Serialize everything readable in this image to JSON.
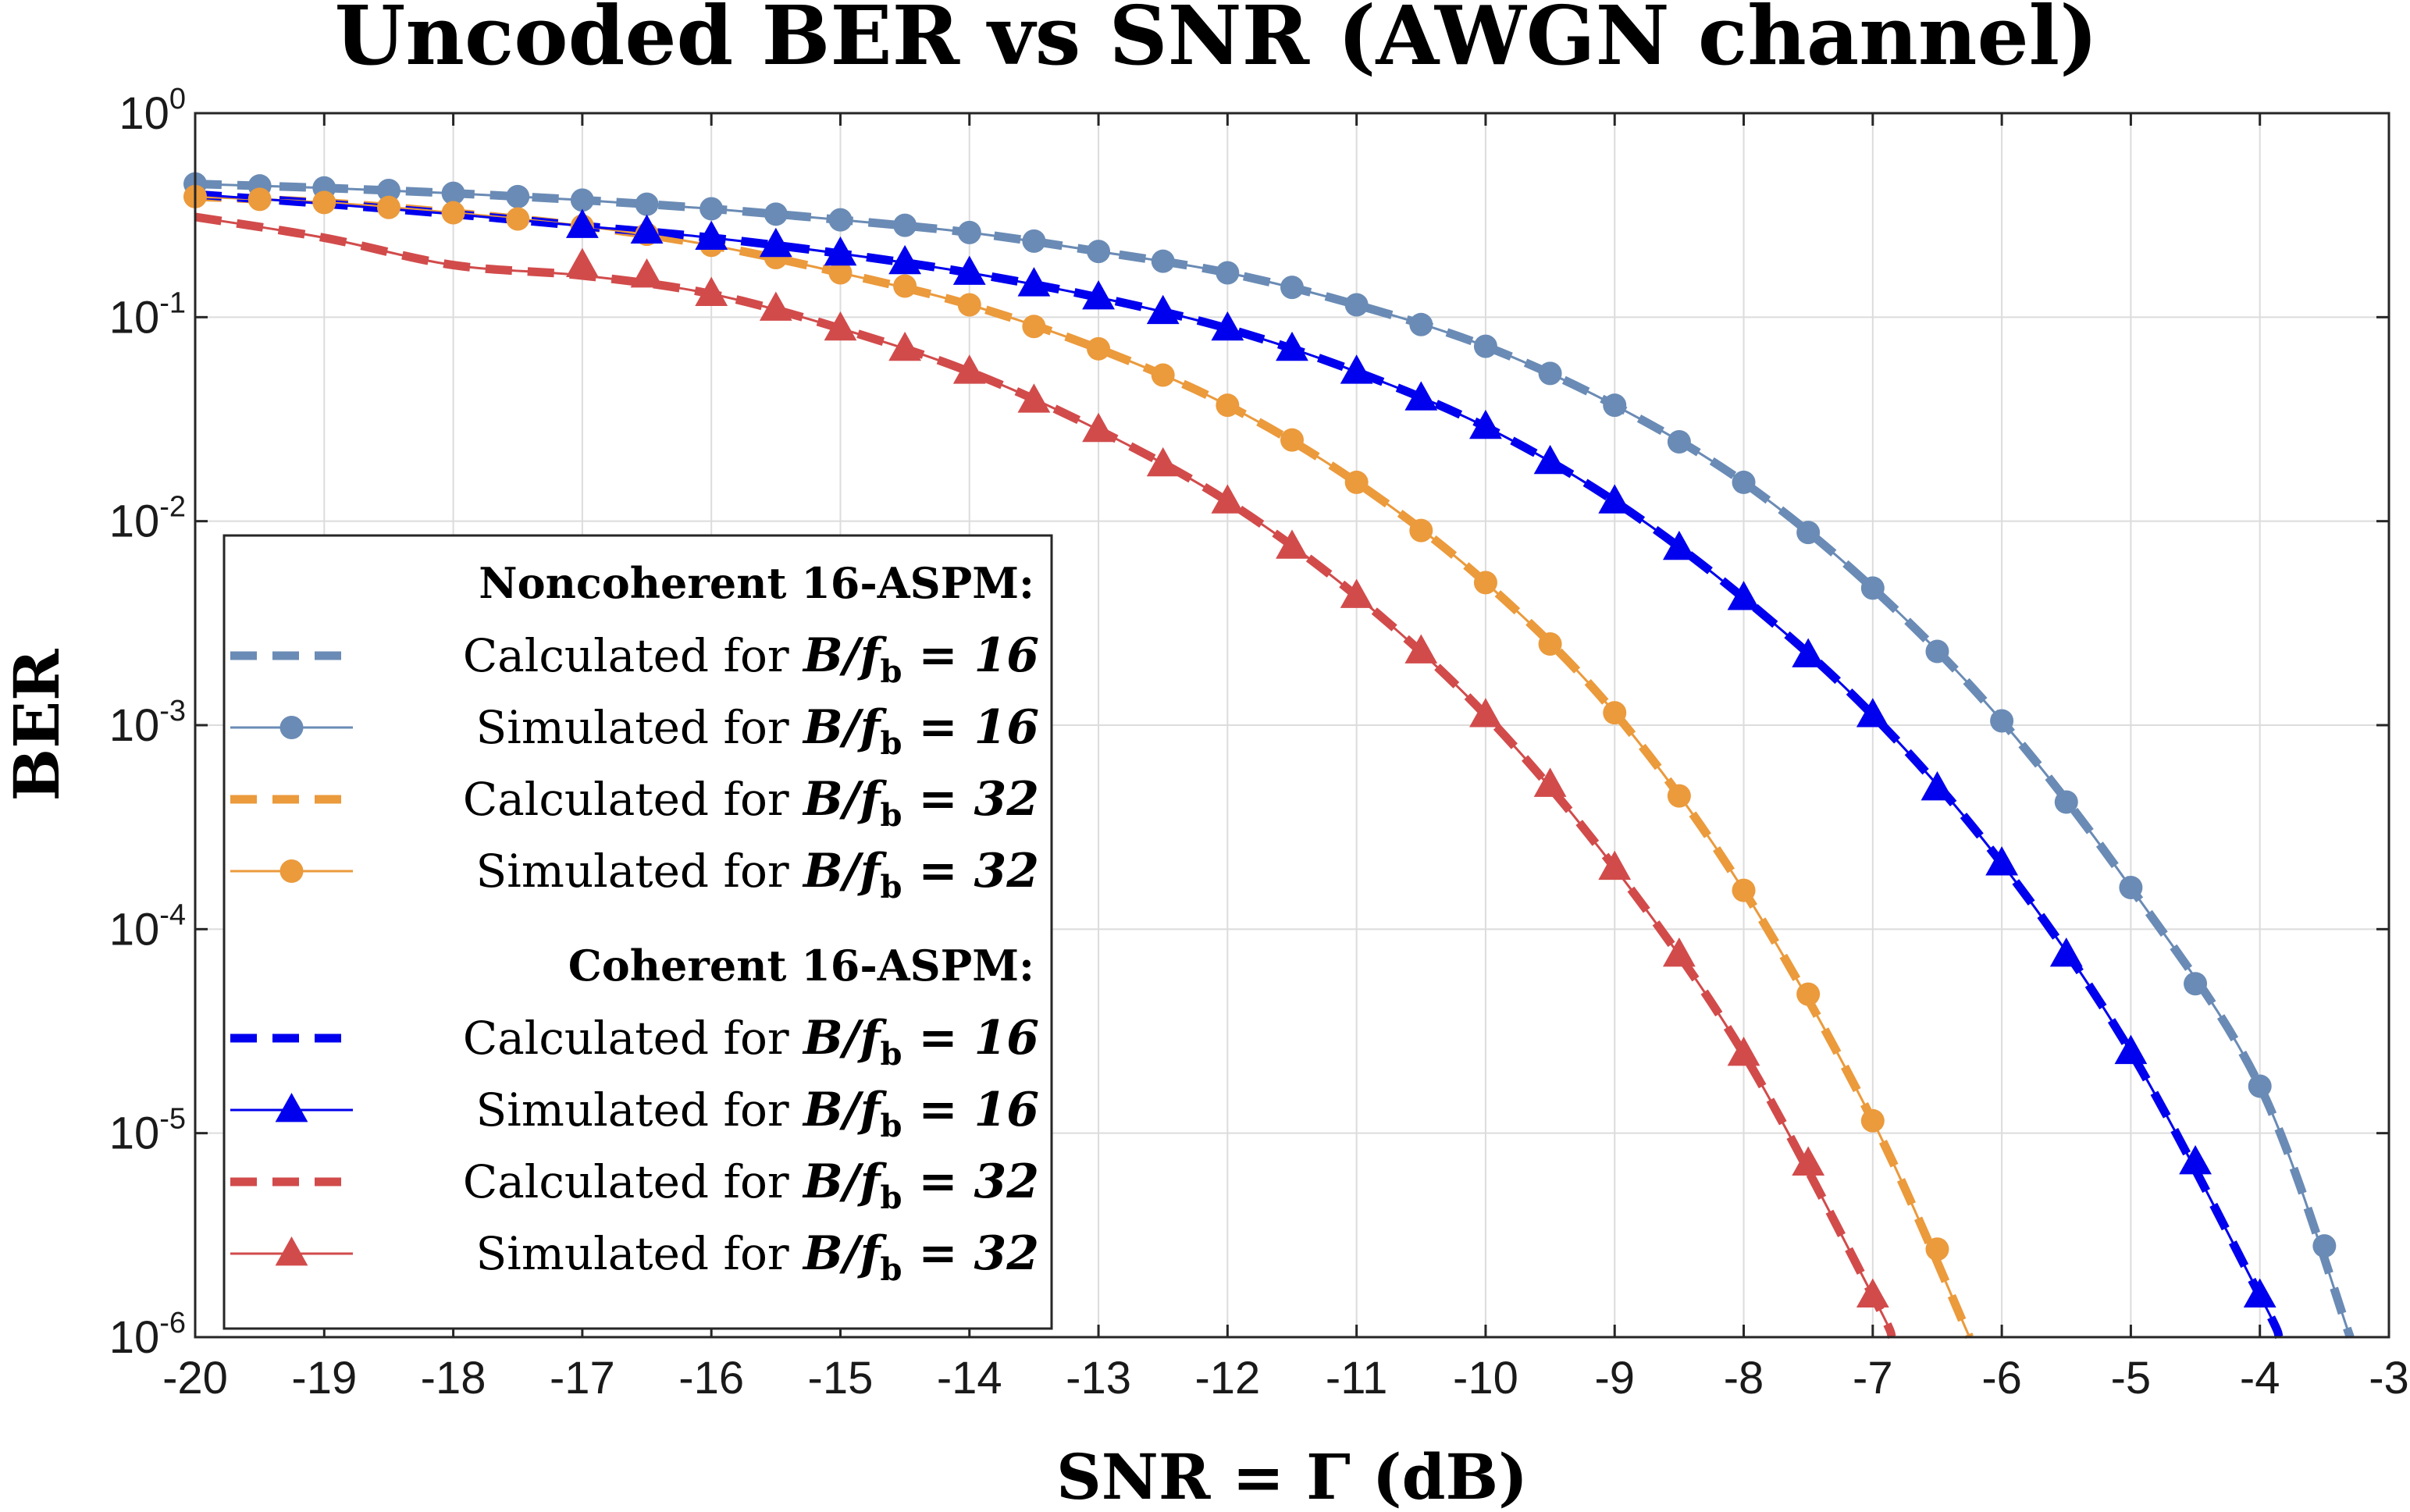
{
  "chart_data": {
    "type": "line",
    "title": "Uncoded BER vs SNR (AWGN channel)",
    "xlabel": "SNR = Γ (dB)",
    "ylabel": "BER",
    "xlim": [
      -20,
      -3
    ],
    "ylim": [
      1e-06,
      1
    ],
    "yscale": "log",
    "grid": true,
    "xticks": [
      -20,
      -19,
      -18,
      -17,
      -16,
      -15,
      -14,
      -13,
      -12,
      -11,
      -10,
      -9,
      -8,
      -7,
      -6,
      -5,
      -4,
      -3
    ],
    "xtick_labels": [
      "-20",
      "-19",
      "-18",
      "-17",
      "-16",
      "-15",
      "-14",
      "-13",
      "-12",
      "-11",
      "-10",
      "-9",
      "-8",
      "-7",
      "-6",
      "-5",
      "-4",
      "-3"
    ],
    "yticks": [
      {
        "value": 1,
        "base": "10",
        "exp": "0"
      },
      {
        "value": 0.1,
        "base": "10",
        "exp": "-1"
      },
      {
        "value": 0.01,
        "base": "10",
        "exp": "-2"
      },
      {
        "value": 0.001,
        "base": "10",
        "exp": "-3"
      },
      {
        "value": 0.0001,
        "base": "10",
        "exp": "-4"
      },
      {
        "value": 1e-05,
        "base": "10",
        "exp": "-5"
      },
      {
        "value": 1e-06,
        "base": "10",
        "exp": "-6"
      }
    ],
    "curves": [
      {
        "key": "nc16",
        "color": "#6a8bb5",
        "x": [
          -20,
          -19,
          -18,
          -17,
          -16,
          -15,
          -14,
          -13,
          -12,
          -11,
          -10,
          -9,
          -8,
          -7,
          -6,
          -5,
          -4,
          -3.3
        ],
        "y": [
          0.45,
          0.43,
          0.405,
          0.375,
          0.34,
          0.3,
          0.26,
          0.21,
          0.165,
          0.115,
          0.072,
          0.037,
          0.0155,
          0.0047,
          0.00105,
          0.00016,
          1.7e-05,
          1e-06
        ]
      },
      {
        "key": "nc32",
        "color": "#eb9a3c",
        "x": [
          -20,
          -19,
          -18,
          -17,
          -16,
          -15,
          -14,
          -13,
          -12,
          -11,
          -10,
          -9,
          -8,
          -7,
          -6.25
        ],
        "y": [
          0.39,
          0.365,
          0.325,
          0.28,
          0.225,
          0.165,
          0.115,
          0.07,
          0.037,
          0.0155,
          0.005,
          0.00115,
          0.000155,
          1.15e-05,
          1e-06
        ]
      },
      {
        "key": "c16",
        "color": "#0000ee",
        "x": [
          -20,
          -19,
          -18,
          -17,
          -16,
          -15,
          -14,
          -13,
          -12,
          -11,
          -10,
          -9,
          -8,
          -7,
          -6,
          -5,
          -4,
          -3.85
        ],
        "y": [
          0.4,
          0.36,
          0.32,
          0.28,
          0.245,
          0.205,
          0.165,
          0.125,
          0.088,
          0.054,
          0.029,
          0.0125,
          0.0042,
          0.00112,
          0.00021,
          2.5e-05,
          1.6e-06,
          1e-06
        ]
      },
      {
        "key": "c32",
        "color": "#d24b4b",
        "x": [
          -20,
          -19,
          -18,
          -17,
          -16,
          -15,
          -14,
          -13,
          -12,
          -11,
          -10,
          -9,
          -8,
          -7,
          -6.85
        ],
        "y": [
          0.31,
          0.245,
          0.18,
          0.16,
          0.13,
          0.088,
          0.054,
          0.028,
          0.0125,
          0.0043,
          0.00112,
          0.0002,
          2.45e-05,
          1.6e-06,
          1e-06
        ]
      }
    ],
    "series": [
      {
        "name": "Noncoherent 16-ASPM: Calculated for B/f_b = 16",
        "style": "dashed",
        "color": "#6a8bb5",
        "curve": "nc16"
      },
      {
        "name": "Noncoherent 16-ASPM: Simulated for B/f_b = 16",
        "style": "solid-circle",
        "color": "#6a8bb5",
        "curve": "nc16",
        "x": [
          -20,
          -19.5,
          -19,
          -18.5,
          -18,
          -17.5,
          -17,
          -16.5,
          -16,
          -15.5,
          -15,
          -14.5,
          -14,
          -13.5,
          -13,
          -12.5,
          -12,
          -11.5,
          -11,
          -10.5,
          -10,
          -9.5,
          -9,
          -8.5,
          -8,
          -7.5,
          -7,
          -6.5,
          -6,
          -5.5,
          -5,
          -4.5,
          -4,
          -3.5
        ],
        "y": [
          0.45,
          0.44,
          0.43,
          0.418,
          0.405,
          0.39,
          0.375,
          0.358,
          0.34,
          0.32,
          0.3,
          0.282,
          0.26,
          0.236,
          0.21,
          0.188,
          0.165,
          0.14,
          0.115,
          0.092,
          0.072,
          0.053,
          0.037,
          0.0245,
          0.0155,
          0.0088,
          0.0047,
          0.0023,
          0.00105,
          0.00042,
          0.00016,
          5.4e-05,
          1.7e-05,
          2.8e-06
        ]
      },
      {
        "name": "Noncoherent 16-ASPM: Calculated for B/f_b = 32",
        "style": "dashed",
        "color": "#eb9a3c",
        "curve": "nc32"
      },
      {
        "name": "Noncoherent 16-ASPM: Simulated for B/f_b = 32",
        "style": "solid-circle",
        "color": "#eb9a3c",
        "curve": "nc32",
        "x": [
          -20,
          -19.5,
          -19,
          -18.5,
          -18,
          -17.5,
          -17,
          -16.5,
          -16,
          -15.5,
          -15,
          -14.5,
          -14,
          -13.5,
          -13,
          -12.5,
          -12,
          -11.5,
          -11,
          -10.5,
          -10,
          -9.5,
          -9,
          -8.5,
          -8,
          -7.5,
          -7,
          -6.5
        ],
        "y": [
          0.39,
          0.378,
          0.365,
          0.345,
          0.325,
          0.303,
          0.28,
          0.255,
          0.225,
          0.196,
          0.165,
          0.142,
          0.115,
          0.09,
          0.07,
          0.052,
          0.037,
          0.025,
          0.0155,
          0.009,
          0.005,
          0.0025,
          0.00115,
          0.00045,
          0.000155,
          4.8e-05,
          1.15e-05,
          2.7e-06
        ]
      },
      {
        "name": "Coherent 16-ASPM: Calculated for B/f_b = 16",
        "style": "dashed",
        "color": "#0000ee",
        "curve": "c16"
      },
      {
        "name": "Coherent 16-ASPM: Simulated for B/f_b = 16",
        "style": "solid-triangle",
        "color": "#0000ee",
        "curve": "c16",
        "x": [
          -17,
          -16.5,
          -16,
          -15.5,
          -15,
          -14.5,
          -14,
          -13.5,
          -13,
          -12.5,
          -12,
          -11.5,
          -11,
          -10.5,
          -10,
          -9.5,
          -9,
          -8.5,
          -8,
          -7.5,
          -7,
          -6.5,
          -6,
          -5.5,
          -5,
          -4.5,
          -4
        ],
        "y": [
          0.28,
          0.263,
          0.245,
          0.226,
          0.205,
          0.186,
          0.165,
          0.145,
          0.125,
          0.106,
          0.088,
          0.07,
          0.054,
          0.04,
          0.029,
          0.0195,
          0.0125,
          0.0074,
          0.0042,
          0.0022,
          0.00112,
          0.00049,
          0.00021,
          7.5e-05,
          2.5e-05,
          7.2e-06,
          1.6e-06
        ]
      },
      {
        "name": "Coherent 16-ASPM: Calculated for B/f_b = 32",
        "style": "dashed",
        "color": "#d24b4b",
        "curve": "c32"
      },
      {
        "name": "Coherent 16-ASPM: Simulated for B/f_b = 32",
        "style": "solid-triangle",
        "color": "#d24b4b",
        "curve": "c32",
        "x": [
          -17,
          -16.5,
          -16,
          -15.5,
          -15,
          -14.5,
          -14,
          -13.5,
          -13,
          -12.5,
          -12,
          -11.5,
          -11,
          -10.5,
          -10,
          -9.5,
          -9,
          -8.5,
          -8,
          -7.5,
          -7
        ],
        "y": [
          0.18,
          0.16,
          0.13,
          0.11,
          0.088,
          0.07,
          0.054,
          0.039,
          0.028,
          0.019,
          0.0125,
          0.0075,
          0.0043,
          0.0023,
          0.00112,
          0.00051,
          0.0002,
          7.5e-05,
          2.45e-05,
          7.1e-06,
          1.6e-06
        ]
      }
    ]
  },
  "legend": {
    "placement": "center-left",
    "groups": [
      {
        "heading": "Noncoherent 16-ASPM:",
        "entries": [
          {
            "prefix": "Calculated for ",
            "math": "B/f",
            "sub": "b",
            "eq": " = 16",
            "style": "dashed",
            "color": "#6a8bb5"
          },
          {
            "prefix": "Simulated for ",
            "math": "B/f",
            "sub": "b",
            "eq": " = 16",
            "style": "solid-circle",
            "color": "#6a8bb5"
          },
          {
            "prefix": "Calculated for ",
            "math": "B/f",
            "sub": "b",
            "eq": " = 32",
            "style": "dashed",
            "color": "#eb9a3c"
          },
          {
            "prefix": "Simulated for ",
            "math": "B/f",
            "sub": "b",
            "eq": " = 32",
            "style": "solid-circle",
            "color": "#eb9a3c"
          }
        ]
      },
      {
        "heading": "Coherent 16-ASPM:",
        "entries": [
          {
            "prefix": "Calculated for ",
            "math": "B/f",
            "sub": "b",
            "eq": " = 16",
            "style": "dashed",
            "color": "#0000ee"
          },
          {
            "prefix": "Simulated for ",
            "math": "B/f",
            "sub": "b",
            "eq": " = 16",
            "style": "solid-triangle",
            "color": "#0000ee"
          },
          {
            "prefix": "Calculated for ",
            "math": "B/f",
            "sub": "b",
            "eq": " = 32",
            "style": "dashed",
            "color": "#d24b4b"
          },
          {
            "prefix": "Simulated for ",
            "math": "B/f",
            "sub": "b",
            "eq": " = 32",
            "style": "solid-triangle",
            "color": "#d24b4b"
          }
        ]
      }
    ]
  }
}
